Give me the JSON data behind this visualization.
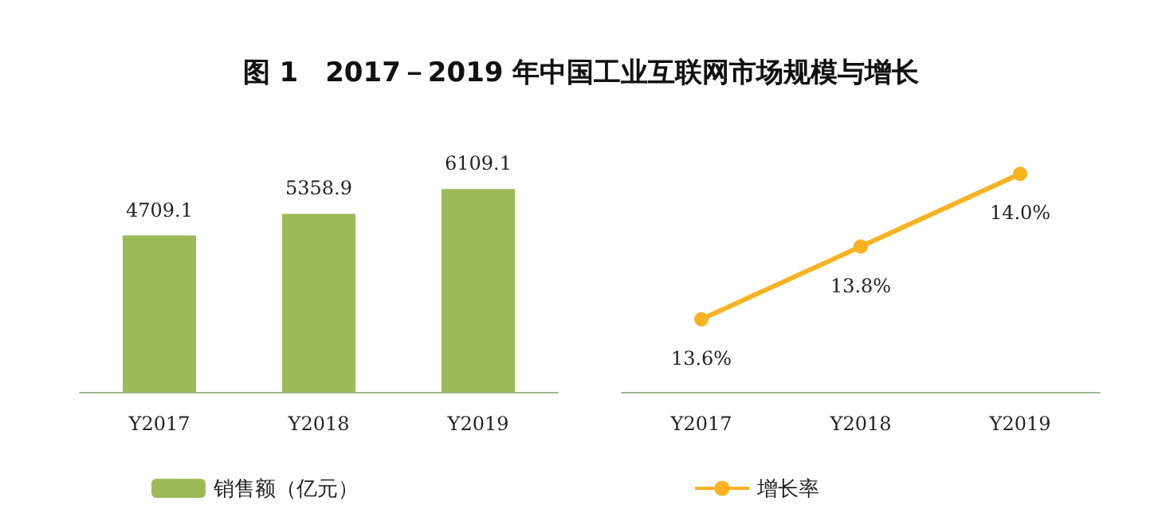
{
  "chart_data": [
    {
      "type": "bar",
      "title": "图 1　2017－2019 年中国工业互联网市场规模与增长",
      "categories": [
        "Y2017",
        "Y2018",
        "Y2019"
      ],
      "series": [
        {
          "name": "销售额（亿元）",
          "color": "#9bbb59",
          "values": [
            4709.1,
            5358.9,
            6109.1
          ]
        }
      ],
      "data_labels": true,
      "legend": "bottom left",
      "grid": false
    },
    {
      "type": "line",
      "categories": [
        "Y2017",
        "Y2018",
        "Y2019"
      ],
      "series": [
        {
          "name": "增长率",
          "color": "#f8b322",
          "values": [
            13.6,
            13.8,
            14.0
          ],
          "value_labels": [
            "13.6%",
            "13.8%",
            "14.0%"
          ]
        }
      ],
      "marker": "circle",
      "legend": "bottom left",
      "grid": false
    }
  ]
}
